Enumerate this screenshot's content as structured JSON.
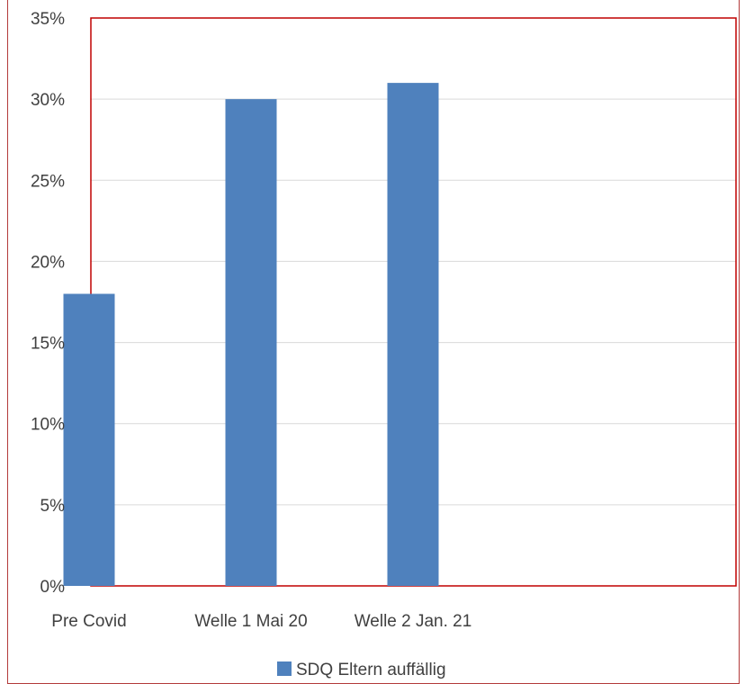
{
  "chart_data": {
    "type": "bar",
    "categories": [
      "Pre Covid",
      "Welle 1 Mai 20",
      "Welle 2 Jan. 21",
      ""
    ],
    "series": [
      {
        "name": "SDQ Eltern auffällig",
        "values": [
          18,
          30,
          31,
          null
        ]
      }
    ],
    "y_ticks": [
      "0%",
      "5%",
      "10%",
      "15%",
      "20%",
      "25%",
      "30%",
      "35%"
    ],
    "ylim": [
      0,
      35
    ],
    "grid": true,
    "legend_position": "bottom",
    "colors": {
      "bar": "#4f81bd",
      "plot_border": "#c00000",
      "frame_border": "#b33a3a",
      "gridline": "#d9d9d9",
      "text": "#404040"
    }
  }
}
